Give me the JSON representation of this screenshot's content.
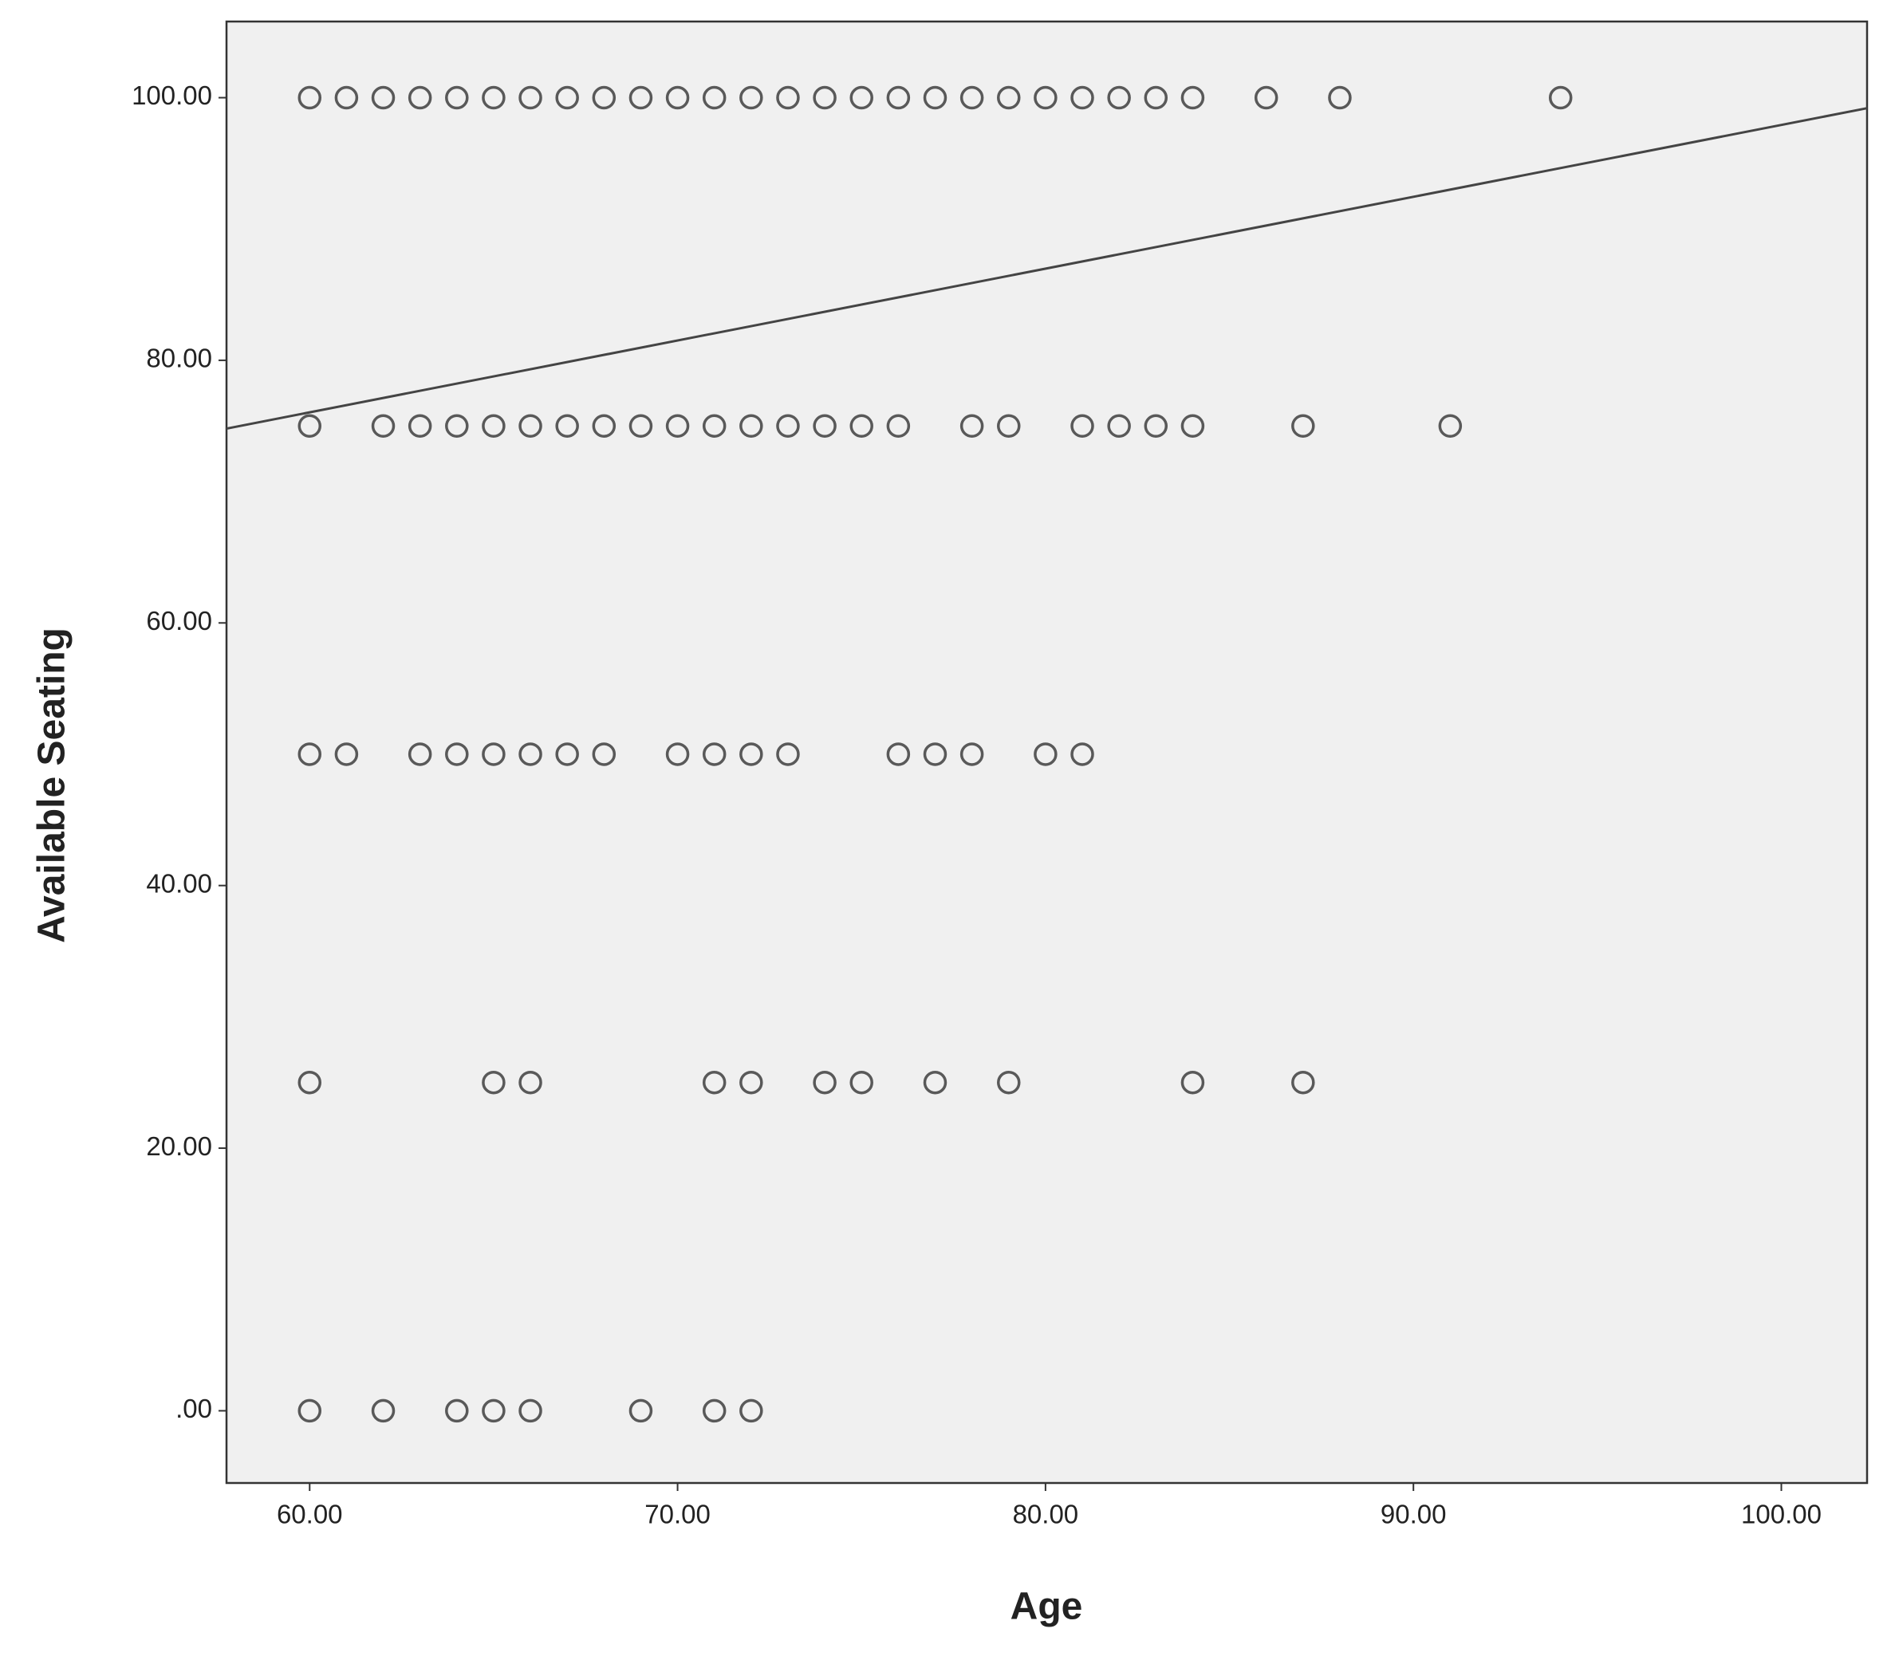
{
  "chart_data": {
    "type": "scatter",
    "x_label": "Age",
    "y_label": "Available Seating",
    "xlim": [
      57.74,
      102.33
    ],
    "ylim": [
      -5.5,
      105.8
    ],
    "xticks": [
      {
        "value": 60,
        "label": "60.00"
      },
      {
        "value": 70,
        "label": "70.00"
      },
      {
        "value": 80,
        "label": "80.00"
      },
      {
        "value": 90,
        "label": "90.00"
      },
      {
        "value": 100,
        "label": "100.00"
      }
    ],
    "yticks": [
      {
        "value": 0,
        "label": ".00"
      },
      {
        "value": 20,
        "label": "20.00"
      },
      {
        "value": 40,
        "label": "40.00"
      },
      {
        "value": 60,
        "label": "60.00"
      },
      {
        "value": 80,
        "label": "80.00"
      },
      {
        "value": 100,
        "label": "100.00"
      }
    ],
    "grid": false,
    "color": "#333333",
    "background": "#f0f0f0",
    "x": [
      60,
      61,
      62,
      63,
      64,
      65,
      66,
      67,
      68,
      69,
      70,
      71,
      72,
      73,
      74,
      75,
      76,
      77,
      78,
      79,
      80,
      81,
      82,
      83,
      84,
      86,
      88,
      94,
      60,
      62,
      63,
      64,
      65,
      66,
      67,
      68,
      69,
      70,
      71,
      72,
      73,
      74,
      75,
      76,
      78,
      79,
      81,
      82,
      83,
      84,
      87,
      91,
      60,
      61,
      63,
      64,
      65,
      66,
      67,
      68,
      70,
      71,
      72,
      73,
      76,
      77,
      78,
      80,
      81,
      60,
      65,
      66,
      71,
      72,
      74,
      75,
      77,
      79,
      84,
      87,
      60,
      62,
      64,
      65,
      66,
      69,
      71,
      72
    ],
    "values": [
      100,
      100,
      100,
      100,
      100,
      100,
      100,
      100,
      100,
      100,
      100,
      100,
      100,
      100,
      100,
      100,
      100,
      100,
      100,
      100,
      100,
      100,
      100,
      100,
      100,
      100,
      100,
      100,
      75,
      75,
      75,
      75,
      75,
      75,
      75,
      75,
      75,
      75,
      75,
      75,
      75,
      75,
      75,
      75,
      75,
      75,
      75,
      75,
      75,
      75,
      75,
      75,
      50,
      50,
      50,
      50,
      50,
      50,
      50,
      50,
      50,
      50,
      50,
      50,
      50,
      50,
      50,
      50,
      50,
      25,
      25,
      25,
      25,
      25,
      25,
      25,
      25,
      25,
      25,
      25,
      0,
      0,
      0,
      0,
      0,
      0,
      0,
      0
    ],
    "fit_line": {
      "x": [
        57.74,
        102.33
      ],
      "y": [
        74.8,
        99.2
      ],
      "color": "#444444"
    }
  }
}
